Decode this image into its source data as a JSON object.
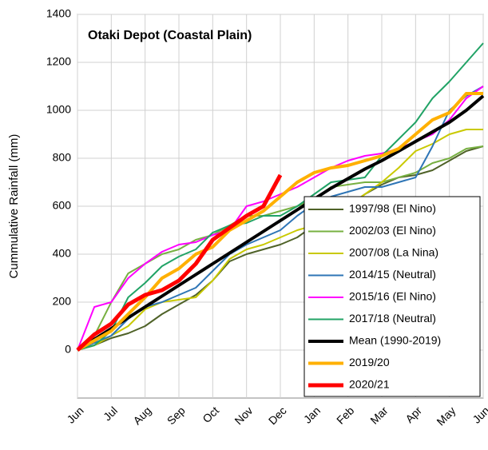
{
  "chart_data": {
    "type": "line",
    "title": "Otaki Depot (Coastal Plain)",
    "y_label": "Cummulative Rainfall (mm)",
    "x": [
      0,
      0.5,
      1,
      1.5,
      2,
      2.5,
      3,
      3.5,
      4,
      4.5,
      5,
      5.5,
      6,
      6.5,
      7,
      7.5,
      8,
      8.5,
      9,
      9.5,
      10,
      10.5,
      11,
      11.5,
      12
    ],
    "xlim": [
      0,
      12
    ],
    "xticks": [
      {
        "value": 0,
        "label": "Jun"
      },
      {
        "value": 1,
        "label": "Jul"
      },
      {
        "value": 2,
        "label": "Aug"
      },
      {
        "value": 3,
        "label": "Sep"
      },
      {
        "value": 4,
        "label": "Oct"
      },
      {
        "value": 5,
        "label": "Nov"
      },
      {
        "value": 6,
        "label": "Dec"
      },
      {
        "value": 7,
        "label": "Jan"
      },
      {
        "value": 8,
        "label": "Feb"
      },
      {
        "value": 9,
        "label": "Mar"
      },
      {
        "value": 10,
        "label": "Apr"
      },
      {
        "value": 11,
        "label": "May"
      },
      {
        "value": 12,
        "label": "Jun"
      }
    ],
    "ylim": [
      -200,
      1400
    ],
    "yticks": [
      0,
      200,
      400,
      600,
      800,
      1000,
      1200,
      1400
    ],
    "grid": true,
    "legend": "lower right",
    "series": [
      {
        "name": "1997/98 (El Nino)",
        "color": "#4f6228",
        "width": 2,
        "values": [
          0,
          20,
          50,
          70,
          100,
          150,
          190,
          230,
          290,
          370,
          400,
          420,
          440,
          470,
          520,
          560,
          600,
          650,
          690,
          720,
          730,
          750,
          790,
          830,
          850
        ]
      },
      {
        "name": "2002/03 (El Nino)",
        "color": "#77b041",
        "width": 2,
        "values": [
          0,
          60,
          200,
          320,
          360,
          400,
          420,
          460,
          480,
          520,
          560,
          560,
          580,
          600,
          630,
          680,
          690,
          700,
          700,
          720,
          740,
          780,
          800,
          840,
          850
        ]
      },
      {
        "name": "2007/08 (La Nina)",
        "color": "#c9c900",
        "width": 2,
        "values": [
          0,
          20,
          60,
          100,
          170,
          200,
          210,
          220,
          290,
          380,
          420,
          440,
          470,
          500,
          520,
          560,
          600,
          650,
          700,
          760,
          830,
          860,
          900,
          920,
          920
        ]
      },
      {
        "name": "2014/15 (Neutral)",
        "color": "#2e75b6",
        "width": 2,
        "values": [
          0,
          30,
          60,
          130,
          180,
          200,
          230,
          260,
          330,
          400,
          440,
          470,
          500,
          560,
          610,
          640,
          660,
          680,
          680,
          700,
          720,
          850,
          1000,
          1060,
          1100
        ]
      },
      {
        "name": "2015/16 (El Nino)",
        "color": "#ff00ff",
        "width": 2,
        "values": [
          0,
          180,
          200,
          300,
          360,
          410,
          440,
          450,
          480,
          500,
          600,
          620,
          650,
          680,
          720,
          760,
          790,
          810,
          820,
          840,
          870,
          900,
          960,
          1050,
          1100
        ]
      },
      {
        "name": "2017/18 (Neutral)",
        "color": "#21a366",
        "width": 2,
        "values": [
          0,
          20,
          80,
          220,
          280,
          350,
          390,
          420,
          490,
          520,
          530,
          560,
          560,
          600,
          650,
          700,
          710,
          720,
          810,
          880,
          950,
          1050,
          1120,
          1200,
          1280
        ]
      },
      {
        "name": "Mean (1990-2019)",
        "color": "#000000",
        "width": 4,
        "values": [
          0,
          45,
          90,
          135,
          180,
          225,
          270,
          315,
          360,
          405,
          450,
          495,
          540,
          585,
          630,
          675,
          715,
          755,
          790,
          830,
          870,
          910,
          950,
          1000,
          1060
        ]
      },
      {
        "name": "2019/20",
        "color": "#ffb000",
        "width": 4,
        "values": [
          0,
          40,
          80,
          150,
          220,
          300,
          340,
          400,
          430,
          500,
          540,
          580,
          640,
          700,
          740,
          760,
          770,
          790,
          810,
          840,
          900,
          960,
          990,
          1070,
          1070
        ]
      },
      {
        "name": "2020/21",
        "color": "#ff0000",
        "width": 5,
        "values": [
          0,
          65,
          110,
          190,
          230,
          250,
          290,
          360,
          460,
          510,
          560,
          600,
          730,
          null,
          null,
          null,
          null,
          null,
          null,
          null,
          null,
          null,
          null,
          null,
          null
        ]
      }
    ]
  }
}
